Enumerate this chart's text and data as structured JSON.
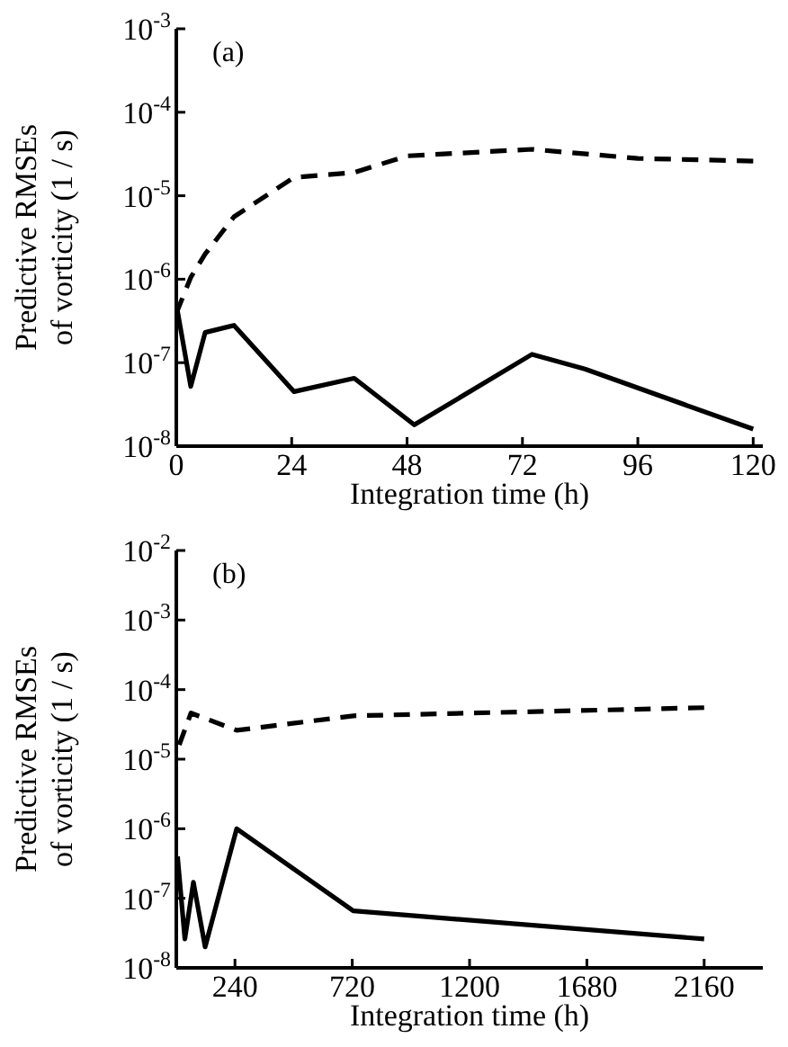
{
  "chart_data": [
    {
      "type": "line",
      "title": "(a)",
      "xlabel": "Integration time (h)",
      "ylabel": "Predictive RMSEs\nof vorticity (1 / s)",
      "log": "y",
      "xlim": [
        0,
        122
      ],
      "xticks": [
        0,
        24,
        48,
        72,
        96,
        120
      ],
      "ylim": [
        1e-08,
        0.001
      ],
      "yticks": [
        {
          "value": 1e-08,
          "label": "10$^{-8}$"
        },
        {
          "value": 1e-07,
          "label": "10$^{-7}$"
        },
        {
          "value": 1e-06,
          "label": "10$^{-6}$"
        },
        {
          "value": 1e-05,
          "label": "10$^{-5}$"
        },
        {
          "value": 0.0001,
          "label": "10$^{-4}$"
        },
        {
          "value": 0.001,
          "label": "10$^{-3}$"
        }
      ],
      "series": [
        {
          "color": "#000000",
          "line_style": "solid",
          "x": [
            0,
            3,
            6,
            12,
            24.5,
            37,
            49.5,
            74,
            85,
            120
          ],
          "values": [
            5e-07,
            5.2e-08,
            2.3e-07,
            2.8e-07,
            4.5e-08,
            6.5e-08,
            1.8e-08,
            1.26e-07,
            8.4e-08,
            1.6e-08
          ]
        },
        {
          "color": "#000000",
          "line_style": "dashed",
          "x": [
            0,
            3,
            6,
            12,
            24.5,
            37,
            48,
            74,
            96,
            120
          ],
          "values": [
            3.9e-07,
            1.05e-06,
            2e-06,
            5.6e-06,
            1.66e-05,
            1.9e-05,
            3e-05,
            3.6e-05,
            2.8e-05,
            2.6e-05
          ]
        }
      ]
    },
    {
      "type": "line",
      "title": "(b)",
      "xlabel": "Integration time (h)",
      "ylabel": "Predictive RMSEs\nof vorticity (1 / s)",
      "log": "y",
      "xlim": [
        0,
        2400
      ],
      "xticks": [
        240,
        720,
        1200,
        1680,
        2160
      ],
      "ylim": [
        1e-08,
        0.01
      ],
      "yticks": [
        {
          "value": 1e-08,
          "label": "10$^{-8}$"
        },
        {
          "value": 1e-07,
          "label": "10$^{-7}$"
        },
        {
          "value": 1e-06,
          "label": "10$^{-6}$"
        },
        {
          "value": 1e-05,
          "label": "10$^{-5}$"
        },
        {
          "value": 0.0001,
          "label": "10$^{-4}$"
        },
        {
          "value": 0.001,
          "label": "10$^{-3}$"
        },
        {
          "value": 0.01,
          "label": "10$^{-2}$"
        }
      ],
      "series": [
        {
          "color": "#000000",
          "line_style": "solid",
          "x": [
            5,
            35,
            70,
            118,
            247,
            724,
            2160
          ],
          "values": [
            4e-07,
            2.6e-08,
            1.7e-07,
            2e-08,
            1e-06,
            6.6e-08,
            2.6e-08
          ]
        },
        {
          "color": "#000000",
          "line_style": "dashed",
          "x": [
            12,
            60,
            247,
            724,
            2160
          ],
          "values": [
            1.6e-05,
            4.6e-05,
            2.6e-05,
            4.2e-05,
            5.5e-05
          ]
        }
      ]
    }
  ]
}
